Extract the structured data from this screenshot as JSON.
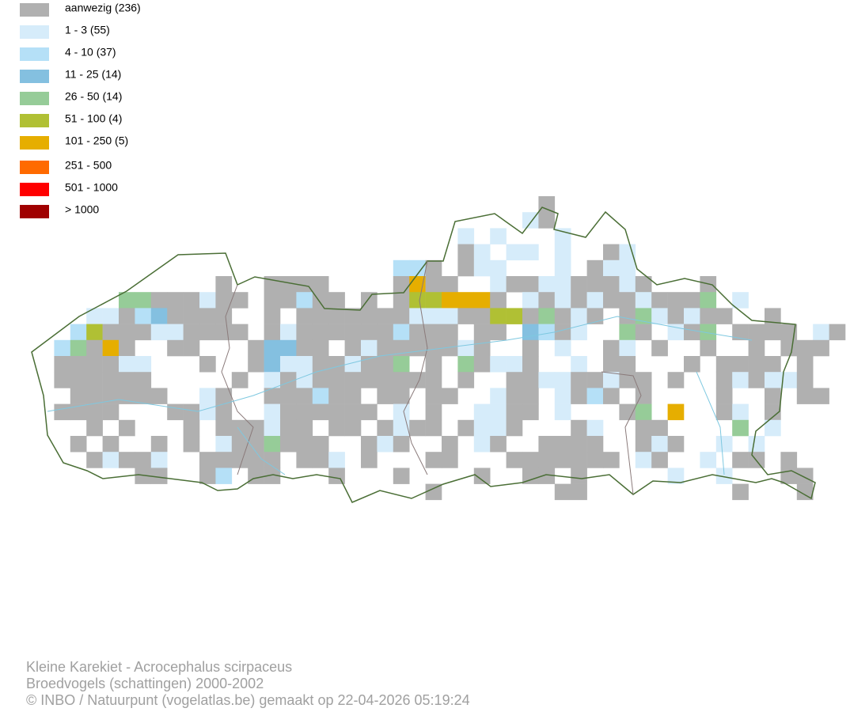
{
  "legend": {
    "items": [
      {
        "label": "aanwezig (236)",
        "color": "#b0b0b0"
      },
      {
        "label": "1 - 3 (55)",
        "color": "#d6ecfa"
      },
      {
        "label": "4 - 10 (37)",
        "color": "#b5e0f7"
      },
      {
        "label": "11 - 25 (14)",
        "color": "#84c0e0"
      },
      {
        "label": "26 - 50 (14)",
        "color": "#96cc98"
      },
      {
        "label": "51 - 100 (4)",
        "color": "#b0c034"
      },
      {
        "label": "101 - 250 (5)",
        "color": "#e6ae00"
      },
      {
        "label": "251 - 500",
        "color": "#ff6a00"
      },
      {
        "label": "501 - 1000",
        "color": "#ff0000"
      },
      {
        "label": "> 1000",
        "color": "#a00000"
      }
    ]
  },
  "footer": {
    "lines": [
      "Kleine Karekiet - Acrocephalus scirpaceus",
      "Broedvogels (schattingen) 2000-2002",
      "© INBO / Natuurpunt (vogelatlas.be) gemaakt op 22-04-2026 05:19:24"
    ]
  }
}
